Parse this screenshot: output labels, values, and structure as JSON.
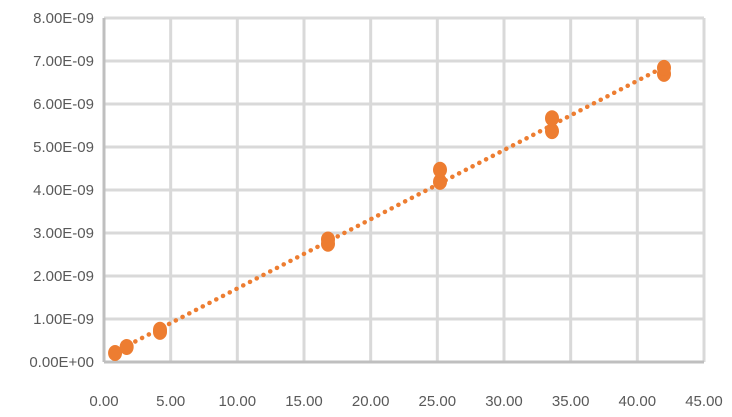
{
  "chart_data": {
    "type": "scatter",
    "title": "",
    "xlabel": "",
    "ylabel": "",
    "xlim": [
      0,
      45
    ],
    "ylim": [
      0,
      8e-09
    ],
    "grid": true,
    "legend": "none",
    "x_ticks": [
      "0.00",
      "5.00",
      "10.00",
      "15.00",
      "20.00",
      "25.00",
      "30.00",
      "35.00",
      "40.00",
      "45.00"
    ],
    "y_ticks": [
      "0.00E+00",
      "1.00E-09",
      "2.00E-09",
      "3.00E-09",
      "4.00E-09",
      "5.00E-09",
      "6.00E-09",
      "7.00E-09",
      "8.00E-09"
    ],
    "series": [
      {
        "color": "#ED7D31",
        "points": [
          {
            "x": 0.83,
            "y": 2.1e-10
          },
          {
            "x": 1.7,
            "y": 3.5e-10
          },
          {
            "x": 4.2,
            "y": 7e-10
          },
          {
            "x": 4.2,
            "y": 7.5e-10
          },
          {
            "x": 16.8,
            "y": 2.75e-09
          },
          {
            "x": 16.8,
            "y": 2.85e-09
          },
          {
            "x": 25.2,
            "y": 4.19e-09
          },
          {
            "x": 25.2,
            "y": 4.47e-09
          },
          {
            "x": 33.6,
            "y": 5.37e-09
          },
          {
            "x": 33.6,
            "y": 5.67e-09
          },
          {
            "x": 42.0,
            "y": 6.7e-09
          },
          {
            "x": 42.0,
            "y": 6.84e-09
          }
        ]
      }
    ],
    "trendline": {
      "type": "linear",
      "style": "dotted",
      "color": "#ED7D31",
      "x_range": [
        0.83,
        42.0
      ],
      "slope": 1.61e-10,
      "intercept": 1e-10
    }
  }
}
